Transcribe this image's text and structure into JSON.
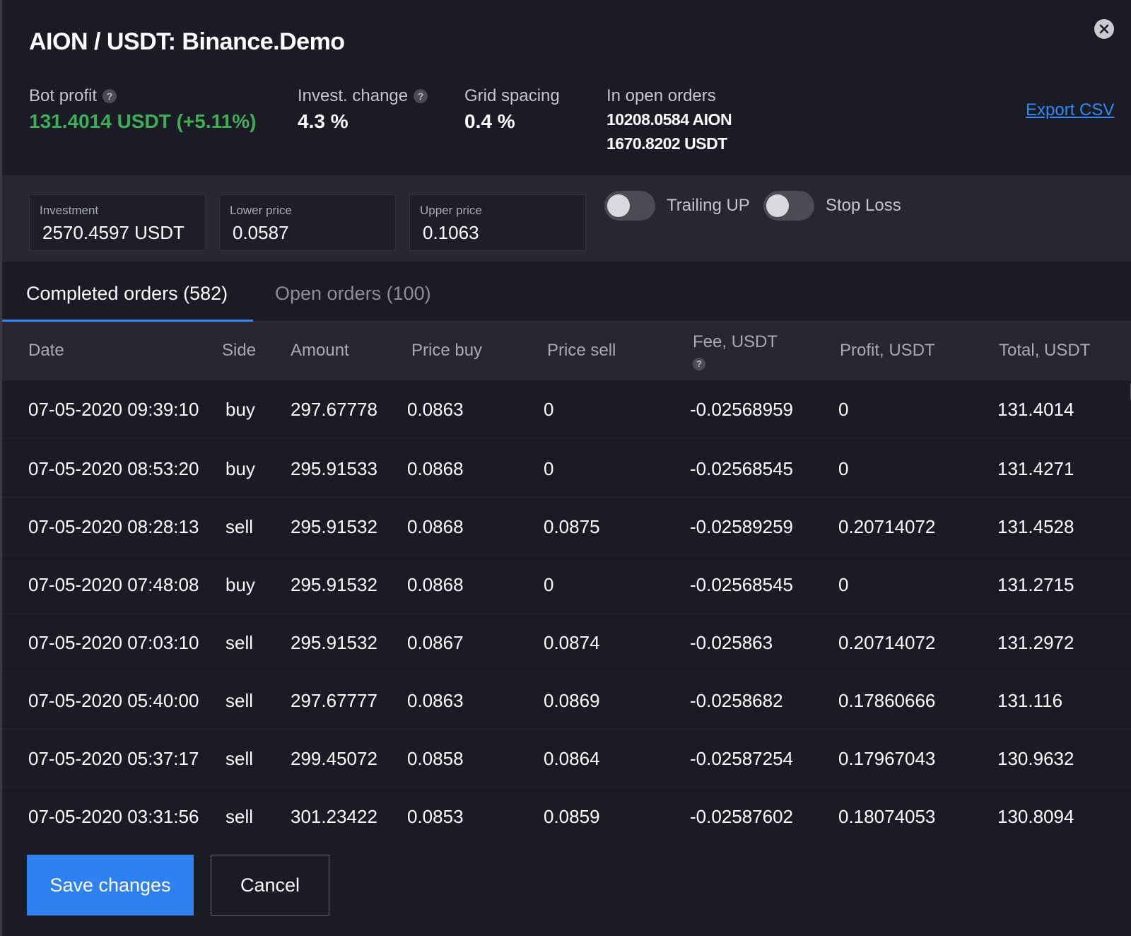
{
  "header": {
    "title": "AION / USDT: Binance.Demo",
    "export_label": "Export CSV",
    "stats": {
      "bot_profit_label": "Bot profit",
      "bot_profit_value": "131.4014 USDT (+5.11%)",
      "invest_change_label": "Invest. change",
      "invest_change_value": "4.3 %",
      "grid_spacing_label": "Grid spacing",
      "grid_spacing_value": "0.4 %",
      "open_orders_label": "In open orders",
      "open_orders_line1": "10208.0584 AION",
      "open_orders_line2": "1670.8202 USDT"
    },
    "help_glyph": "?"
  },
  "settings": {
    "investment_label": "Investment",
    "investment_value": "2570.4597 USDT",
    "lower_label": "Lower price",
    "lower_value": "0.0587",
    "upper_label": "Upper price",
    "upper_value": "0.1063",
    "trailing_label": "Trailing UP",
    "trailing_on": false,
    "stop_loss_label": "Stop Loss",
    "stop_loss_on": false
  },
  "tabs": {
    "completed": "Completed orders (582)",
    "open": "Open orders (100)"
  },
  "table": {
    "columns": [
      "Date",
      "Side",
      "Amount",
      "Price buy",
      "Price sell",
      "Fee, USDT",
      "Profit, USDT",
      "Total, USDT"
    ],
    "rows": [
      [
        "07-05-2020 09:39:10",
        "buy",
        "297.67778",
        "0.0863",
        "0",
        "-0.02568959",
        "0",
        "131.4014"
      ],
      [
        "07-05-2020 08:53:20",
        "buy",
        "295.91533",
        "0.0868",
        "0",
        "-0.02568545",
        "0",
        "131.4271"
      ],
      [
        "07-05-2020 08:28:13",
        "sell",
        "295.91532",
        "0.0868",
        "0.0875",
        "-0.02589259",
        "0.20714072",
        "131.4528"
      ],
      [
        "07-05-2020 07:48:08",
        "buy",
        "295.91532",
        "0.0868",
        "0",
        "-0.02568545",
        "0",
        "131.2715"
      ],
      [
        "07-05-2020 07:03:10",
        "sell",
        "295.91532",
        "0.0867",
        "0.0874",
        "-0.025863",
        "0.20714072",
        "131.2972"
      ],
      [
        "07-05-2020 05:40:00",
        "sell",
        "297.67777",
        "0.0863",
        "0.0869",
        "-0.0258682",
        "0.17860666",
        "131.116"
      ],
      [
        "07-05-2020 05:37:17",
        "sell",
        "299.45072",
        "0.0858",
        "0.0864",
        "-0.02587254",
        "0.17967043",
        "130.9632"
      ],
      [
        "07-05-2020 03:31:56",
        "sell",
        "301.23422",
        "0.0853",
        "0.0859",
        "-0.02587602",
        "0.18074053",
        "130.8094"
      ]
    ]
  },
  "footer": {
    "save_label": "Save changes",
    "cancel_label": "Cancel"
  },
  "colors": {
    "positive": "#3fae5a",
    "negative": "#e5533d",
    "accent": "#2f80f0"
  }
}
